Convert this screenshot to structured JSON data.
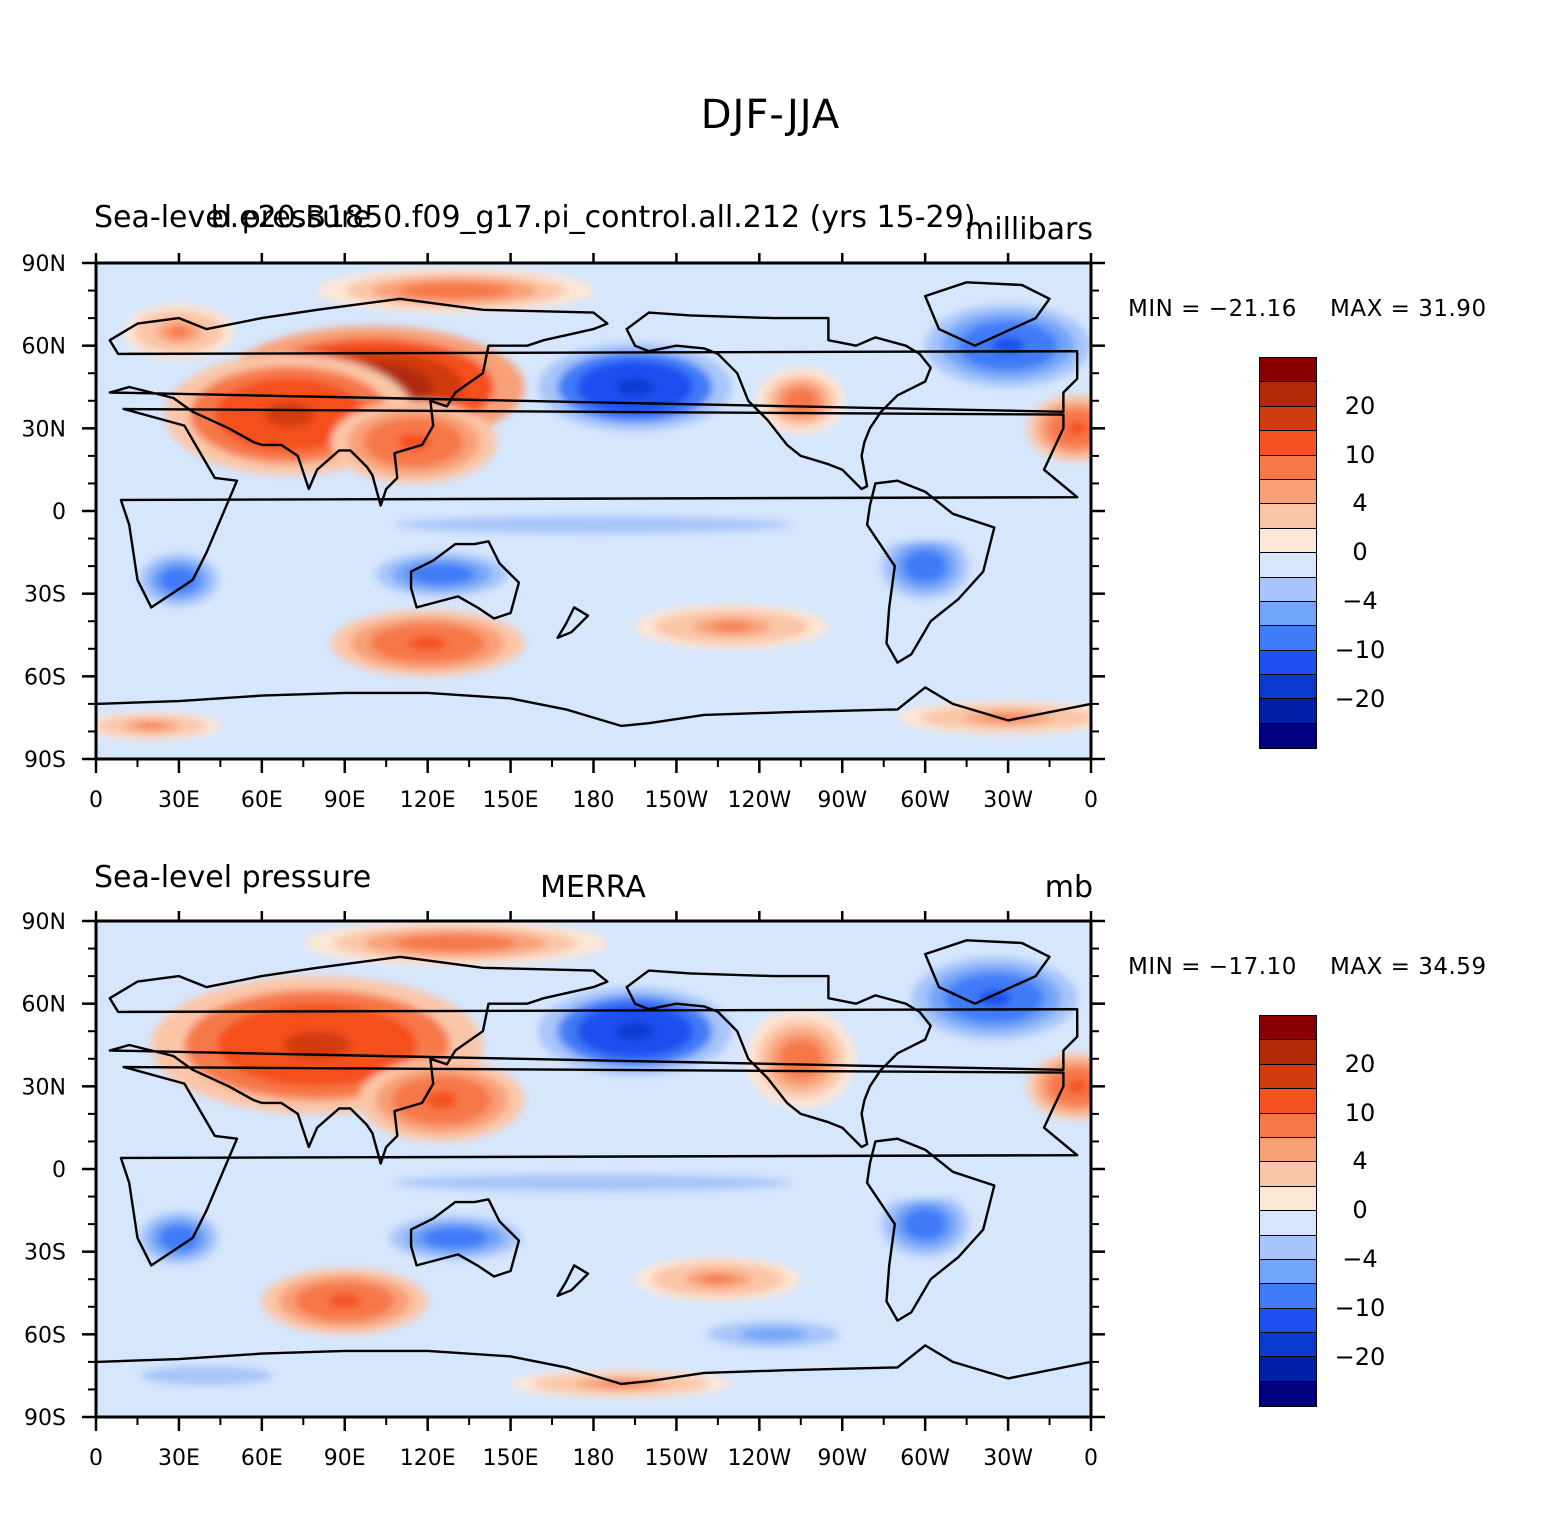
{
  "title": "DJF-JJA",
  "colors": {
    "levels": [
      "#000080",
      "#0020a8",
      "#0a3ad0",
      "#1c50f0",
      "#3f7cf8",
      "#72a4f7",
      "#a7c5fa",
      "#d6e6fc",
      "#fde6d5",
      "#fbc6a8",
      "#f8a078",
      "#f67848",
      "#f5501f",
      "#d23a10",
      "#b02a08",
      "#8a0000"
    ],
    "land": "#000000",
    "grid": "#000000"
  },
  "chart_data": [
    {
      "type": "heatmap",
      "panel_id": "top",
      "title_left": "Sea-level pressure",
      "title_center": "b.e20.B1850.f09_g17.pi_control.all.212 (yrs 15-29)",
      "title_right": "millibars",
      "min_label": "MIN = −21.16",
      "max_label": "MAX =   31.90",
      "min": -21.16,
      "max": 31.9,
      "xticks": [
        "0",
        "30E",
        "60E",
        "90E",
        "120E",
        "150E",
        "180",
        "150W",
        "120W",
        "90W",
        "60W",
        "30W",
        "0"
      ],
      "yticks": [
        "90N",
        "60N",
        "30N",
        "0",
        "30S",
        "60S",
        "90S"
      ],
      "xlim": [
        0,
        360
      ],
      "ylim": [
        -90,
        90
      ],
      "colorbar_levels": [
        -25,
        -20,
        -15,
        -10,
        -6,
        -4,
        -2,
        0,
        2,
        4,
        6,
        10,
        15,
        20,
        25
      ],
      "colorbar_labels": [
        "20",
        "10",
        "4",
        "0",
        "−4",
        "−10",
        "−20"
      ],
      "features": [
        {
          "lon": 100,
          "lat": 45,
          "value": 27,
          "rx": 55,
          "ry": 22
        },
        {
          "lon": 70,
          "lat": 35,
          "value": 18,
          "rx": 45,
          "ry": 22
        },
        {
          "lon": 115,
          "lat": 25,
          "value": 12,
          "rx": 30,
          "ry": 15
        },
        {
          "lon": 130,
          "lat": 80,
          "value": 8,
          "rx": 50,
          "ry": 8
        },
        {
          "lon": 30,
          "lat": 65,
          "value": 6,
          "rx": 20,
          "ry": 10
        },
        {
          "lon": 195,
          "lat": 45,
          "value": -18,
          "rx": 35,
          "ry": 16
        },
        {
          "lon": 255,
          "lat": 40,
          "value": 8,
          "rx": 16,
          "ry": 12
        },
        {
          "lon": 330,
          "lat": 60,
          "value": -12,
          "rx": 30,
          "ry": 15
        },
        {
          "lon": 355,
          "lat": 30,
          "value": 10,
          "rx": 18,
          "ry": 12
        },
        {
          "lon": 30,
          "lat": -25,
          "value": -10,
          "rx": 18,
          "ry": 12
        },
        {
          "lon": 125,
          "lat": -23,
          "value": -10,
          "rx": 30,
          "ry": 10
        },
        {
          "lon": 300,
          "lat": -20,
          "value": -10,
          "rx": 20,
          "ry": 15
        },
        {
          "lon": 120,
          "lat": -48,
          "value": 10,
          "rx": 35,
          "ry": 12
        },
        {
          "lon": 230,
          "lat": -42,
          "value": 6,
          "rx": 35,
          "ry": 8
        },
        {
          "lon": 180,
          "lat": -5,
          "value": -3,
          "rx": 180,
          "ry": 8
        },
        {
          "lon": 20,
          "lat": -78,
          "value": 6,
          "rx": 25,
          "ry": 5
        },
        {
          "lon": 330,
          "lat": -75,
          "value": 6,
          "rx": 40,
          "ry": 6
        }
      ]
    },
    {
      "type": "heatmap",
      "panel_id": "bottom",
      "title_left": "Sea-level pressure",
      "title_center": "MERRA",
      "title_right": "mb",
      "min_label": "MIN = −17.10",
      "max_label": "MAX =   34.59",
      "min": -17.1,
      "max": 34.59,
      "xticks": [
        "0",
        "30E",
        "60E",
        "90E",
        "120E",
        "150E",
        "180",
        "150W",
        "120W",
        "90W",
        "60W",
        "30W",
        "0"
      ],
      "yticks": [
        "90N",
        "60N",
        "30N",
        "0",
        "30S",
        "60S",
        "90S"
      ],
      "xlim": [
        0,
        360
      ],
      "ylim": [
        -90,
        90
      ],
      "colorbar_levels": [
        -25,
        -20,
        -15,
        -10,
        -6,
        -4,
        -2,
        0,
        2,
        4,
        6,
        10,
        15,
        20,
        25
      ],
      "colorbar_labels": [
        "20",
        "10",
        "4",
        "0",
        "−4",
        "−10",
        "−20"
      ],
      "features": [
        {
          "lon": 90,
          "lat": 40,
          "value": 28,
          "rx": 40,
          "ry": 16
        },
        {
          "lon": 80,
          "lat": 45,
          "value": 18,
          "rx": 60,
          "ry": 25
        },
        {
          "lon": 125,
          "lat": 25,
          "value": 12,
          "rx": 30,
          "ry": 15
        },
        {
          "lon": 130,
          "lat": 82,
          "value": 8,
          "rx": 55,
          "ry": 8
        },
        {
          "lon": 195,
          "lat": 50,
          "value": -18,
          "rx": 35,
          "ry": 16
        },
        {
          "lon": 255,
          "lat": 40,
          "value": 8,
          "rx": 20,
          "ry": 18
        },
        {
          "lon": 325,
          "lat": 62,
          "value": -12,
          "rx": 30,
          "ry": 15
        },
        {
          "lon": 355,
          "lat": 30,
          "value": 10,
          "rx": 18,
          "ry": 12
        },
        {
          "lon": 30,
          "lat": -25,
          "value": -10,
          "rx": 18,
          "ry": 12
        },
        {
          "lon": 130,
          "lat": -25,
          "value": -10,
          "rx": 30,
          "ry": 10
        },
        {
          "lon": 300,
          "lat": -20,
          "value": -10,
          "rx": 20,
          "ry": 15
        },
        {
          "lon": 90,
          "lat": -48,
          "value": 10,
          "rx": 30,
          "ry": 12
        },
        {
          "lon": 225,
          "lat": -40,
          "value": 6,
          "rx": 30,
          "ry": 8
        },
        {
          "lon": 245,
          "lat": -60,
          "value": -6,
          "rx": 30,
          "ry": 6
        },
        {
          "lon": 180,
          "lat": -5,
          "value": -3,
          "rx": 180,
          "ry": 8
        },
        {
          "lon": 190,
          "lat": -78,
          "value": 6,
          "rx": 40,
          "ry": 5
        },
        {
          "lon": 40,
          "lat": -75,
          "value": -4,
          "rx": 40,
          "ry": 6
        }
      ]
    }
  ]
}
